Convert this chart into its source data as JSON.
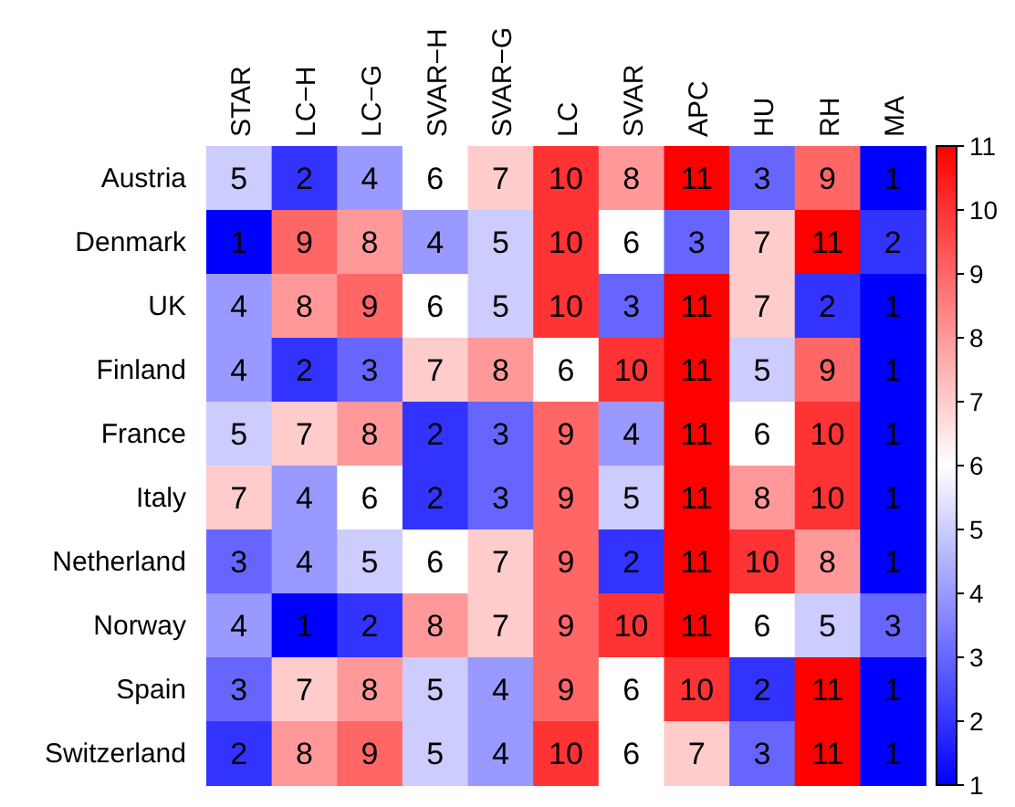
{
  "chart_data": {
    "type": "heatmap",
    "categories": [
      "STAR",
      "LC−H",
      "LC−G",
      "SVAR−H",
      "SVAR−G",
      "LC",
      "SVAR",
      "APC",
      "HU",
      "RH",
      "MA"
    ],
    "y_categories": [
      "Austria",
      "Denmark",
      "UK",
      "Finland",
      "France",
      "Italy",
      "Netherland",
      "Norway",
      "Spain",
      "Switzerland"
    ],
    "cells": [
      [
        5,
        2,
        4,
        6,
        7,
        10,
        8,
        11,
        3,
        9,
        1
      ],
      [
        1,
        9,
        8,
        4,
        5,
        10,
        6,
        3,
        7,
        11,
        2
      ],
      [
        4,
        8,
        9,
        6,
        5,
        10,
        3,
        11,
        7,
        2,
        1
      ],
      [
        4,
        2,
        3,
        7,
        8,
        6,
        10,
        11,
        5,
        9,
        1
      ],
      [
        5,
        7,
        8,
        2,
        3,
        9,
        4,
        11,
        6,
        10,
        1
      ],
      [
        7,
        4,
        6,
        2,
        3,
        9,
        5,
        11,
        8,
        10,
        1
      ],
      [
        3,
        4,
        5,
        6,
        7,
        9,
        2,
        11,
        10,
        8,
        1
      ],
      [
        4,
        1,
        2,
        8,
        7,
        9,
        10,
        11,
        6,
        5,
        3
      ],
      [
        3,
        7,
        8,
        5,
        4,
        9,
        6,
        10,
        2,
        11,
        1
      ],
      [
        2,
        8,
        9,
        5,
        4,
        10,
        6,
        7,
        3,
        11,
        1
      ]
    ],
    "clim": [
      1,
      11
    ],
    "cticks": [
      1,
      2,
      3,
      4,
      5,
      6,
      7,
      8,
      9,
      10,
      11
    ],
    "data_labels": true
  }
}
